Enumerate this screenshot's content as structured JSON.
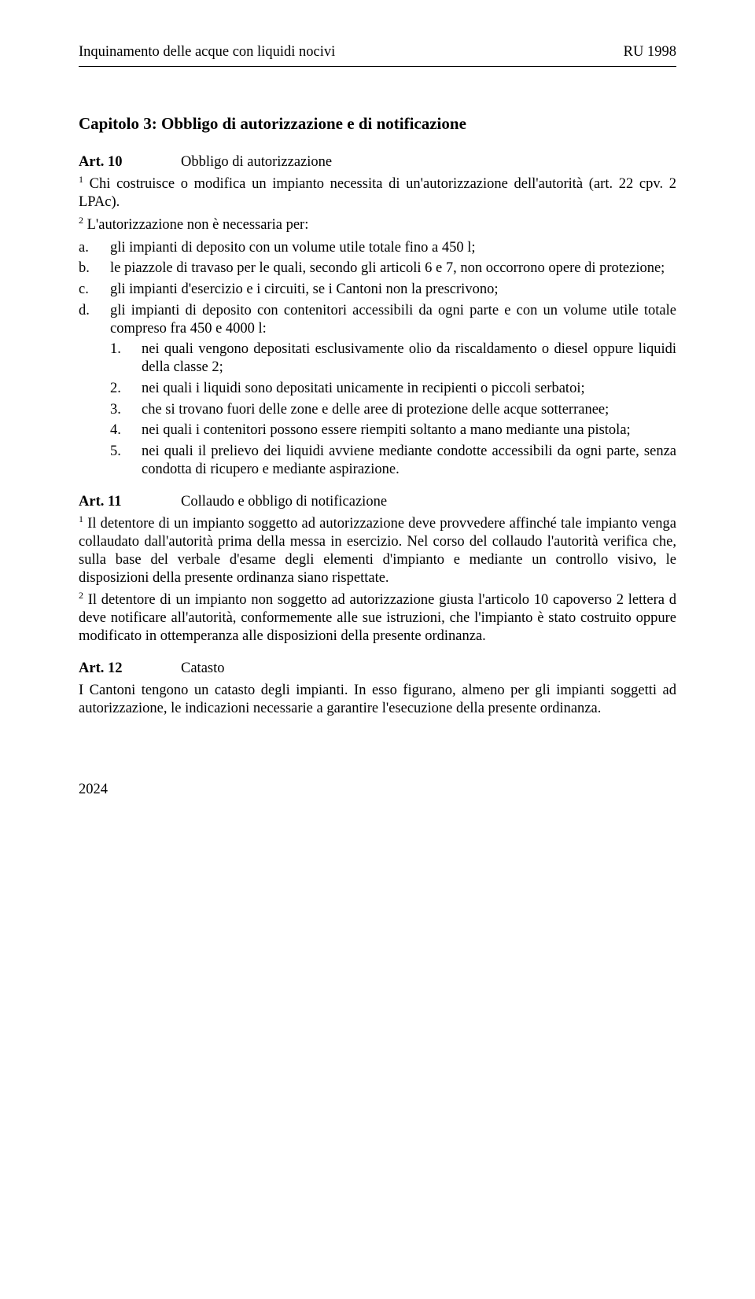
{
  "header": {
    "left": "Inquinamento delle acque con liquidi nocivi",
    "right": "RU 1998"
  },
  "chapter_heading": "Capitolo 3: Obbligo di autorizzazione e di notificazione",
  "art10": {
    "label": "Art. 10",
    "title": "Obbligo di autorizzazione",
    "p1_sup": "1",
    "p1": " Chi costruisce o modifica un impianto necessita di un'autorizzazione dell'autorità (art. 22 cpv. 2 LPAc).",
    "p2_sup": "2",
    "p2": " L'autorizzazione non è necessaria per:",
    "a_m": "a.",
    "a_t": "gli impianti di deposito con un volume utile totale fino a 450 l;",
    "b_m": "b.",
    "b_t": "le piazzole di travaso per le quali, secondo gli articoli 6 e 7, non occorrono opere di protezione;",
    "c_m": "c.",
    "c_t": "gli impianti d'esercizio e i circuiti, se i Cantoni non la prescrivono;",
    "d_m": "d.",
    "d_t": "gli impianti di deposito con contenitori accessibili da ogni parte e con un volume utile totale compreso fra 450 e 4000 l:",
    "d1_m": "1.",
    "d1_t": "nei quali vengono depositati esclusivamente olio da riscaldamento o diesel oppure liquidi della classe 2;",
    "d2_m": "2.",
    "d2_t": "nei quali i liquidi sono depositati unicamente in recipienti o piccoli serbatoi;",
    "d3_m": "3.",
    "d3_t": "che si trovano fuori delle zone e delle aree di protezione delle acque sotterranee;",
    "d4_m": "4.",
    "d4_t": "nei quali i contenitori possono essere riempiti soltanto a mano mediante una pistola;",
    "d5_m": "5.",
    "d5_t": "nei quali il prelievo dei liquidi avviene mediante condotte accessibili da ogni parte, senza condotta di ricupero e mediante aspirazione."
  },
  "art11": {
    "label": "Art. 11",
    "title": "Collaudo e obbligo di notificazione",
    "p1_sup": "1",
    "p1": " Il detentore di un impianto soggetto ad autorizzazione deve provvedere affinché tale impianto venga collaudato dall'autorità prima della messa in esercizio. Nel corso del collaudo l'autorità verifica che, sulla base del verbale d'esame degli elementi d'impianto e mediante un controllo visivo, le disposizioni della presente ordinanza siano rispettate.",
    "p2_sup": "2",
    "p2": " Il detentore di un impianto non soggetto ad autorizzazione giusta l'articolo 10 capoverso 2 lettera d deve notificare all'autorità, conformemente alle sue istruzioni, che l'impianto è stato costruito oppure modificato in ottemperanza alle disposizioni della presente ordinanza."
  },
  "art12": {
    "label": "Art. 12",
    "title": "Catasto",
    "p1": "I Cantoni tengono un catasto degli impianti. In esso figurano, almeno per gli impianti soggetti ad autorizzazione, le indicazioni necessarie a garantire l'esecuzione della presente ordinanza."
  },
  "page_number": "2024"
}
